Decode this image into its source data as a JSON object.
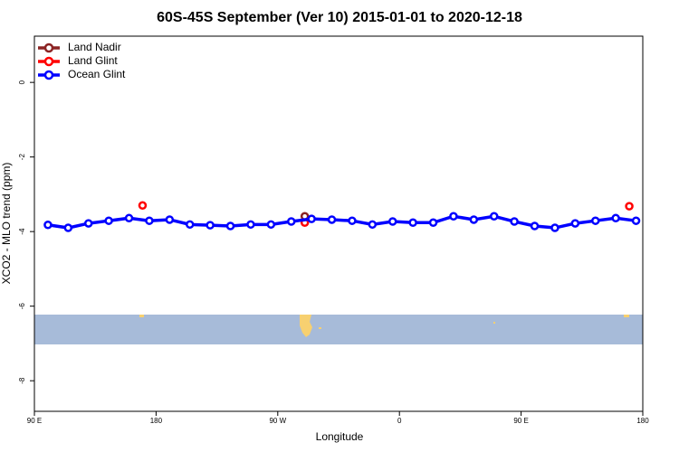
{
  "chart_data": {
    "type": "line",
    "title": "60S-45S September (Ver 10)   2015-01-01 to 2020-12-18",
    "x_label": "Longitude",
    "y_label": "XCO2 - MLO trend (ppm)",
    "xlim": [
      90,
      540
    ],
    "ylim": [
      -8.82,
      1.24
    ],
    "xticks": [
      {
        "value": 90,
        "label": "90 E"
      },
      180,
      {
        "value": 270,
        "label": "90 W"
      },
      {
        "value": 360,
        "label": "0"
      },
      {
        "value": 450,
        "label": "90 E"
      },
      {
        "value": 540,
        "label": "180"
      }
    ],
    "yticks": [
      0,
      -2,
      -4,
      -6,
      -8
    ],
    "legend": "top-left",
    "series": [
      {
        "name": "Land Nadir",
        "color": "#8b2323",
        "line": false,
        "x": [
          290
        ],
        "values": [
          -3.59
        ]
      },
      {
        "name": "Land Glint",
        "color": "#ff0000",
        "line": false,
        "x": [
          170,
          290,
          530
        ],
        "values": [
          -3.3,
          -3.76,
          -3.32
        ]
      },
      {
        "name": "Ocean Glint",
        "color": "#0000ff",
        "line": true,
        "x": [
          100,
          115,
          130,
          145,
          160,
          175,
          190,
          205,
          220,
          235,
          250,
          265,
          280,
          295,
          310,
          325,
          340,
          355,
          370,
          385,
          400,
          415,
          430,
          445,
          460,
          475,
          490,
          505,
          520,
          535
        ],
        "values": [
          -3.82,
          -3.9,
          -3.78,
          -3.71,
          -3.64,
          -3.71,
          -3.68,
          -3.81,
          -3.83,
          -3.85,
          -3.81,
          -3.81,
          -3.73,
          -3.66,
          -3.68,
          -3.71,
          -3.81,
          -3.73,
          -3.76,
          -3.76,
          -3.59,
          -3.68,
          -3.59,
          -3.73,
          -3.85,
          -3.9,
          -3.78,
          -3.71,
          -3.64,
          -3.71
        ]
      }
    ]
  }
}
